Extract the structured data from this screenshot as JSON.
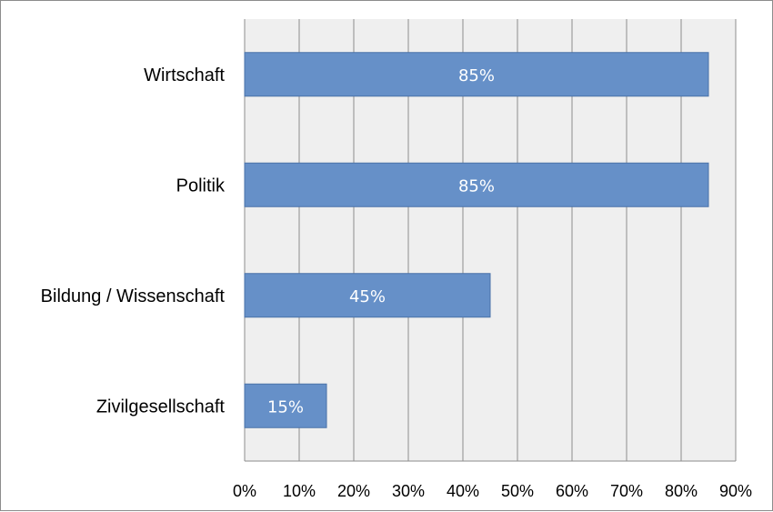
{
  "chart_data": {
    "type": "bar",
    "orientation": "horizontal",
    "categories": [
      "Wirtschaft",
      "Politik",
      "Bildung / Wissenschaft",
      "Zivilgesellschaft"
    ],
    "values": [
      85,
      85,
      45,
      15
    ],
    "data_labels": [
      "85%",
      "85%",
      "45%",
      "15%"
    ],
    "x_ticks": [
      "0%",
      "10%",
      "20%",
      "30%",
      "40%",
      "50%",
      "60%",
      "70%",
      "80%",
      "90%"
    ],
    "xlim": [
      0,
      90
    ],
    "grid": true,
    "title": "",
    "xlabel": "",
    "ylabel": "",
    "colors": {
      "bar": "#6690c8",
      "bar_border": "#4a72a8",
      "plot_background": "#efefef",
      "gridline": "#8c8c8c"
    }
  }
}
